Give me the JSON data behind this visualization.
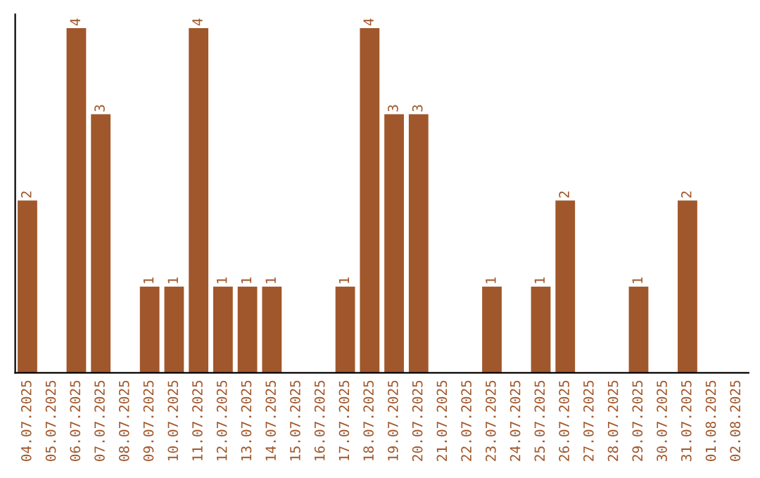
{
  "chart_data": {
    "type": "bar",
    "categories": [
      "04.07.2025",
      "05.07.2025",
      "06.07.2025",
      "07.07.2025",
      "08.07.2025",
      "09.07.2025",
      "10.07.2025",
      "11.07.2025",
      "12.07.2025",
      "13.07.2025",
      "14.07.2025",
      "15.07.2025",
      "16.07.2025",
      "17.07.2025",
      "18.07.2025",
      "19.07.2025",
      "20.07.2025",
      "21.07.2025",
      "22.07.2025",
      "23.07.2025",
      "24.07.2025",
      "25.07.2025",
      "26.07.2025",
      "27.07.2025",
      "28.07.2025",
      "29.07.2025",
      "30.07.2025",
      "31.07.2025",
      "01.08.2025",
      "02.08.2025"
    ],
    "values": [
      2,
      0,
      4,
      3,
      0,
      1,
      1,
      4,
      1,
      1,
      1,
      0,
      0,
      1,
      4,
      3,
      3,
      0,
      0,
      1,
      0,
      1,
      2,
      0,
      0,
      1,
      0,
      2,
      0,
      0
    ],
    "value_labels": [
      "2",
      null,
      "4",
      "3",
      null,
      "1",
      "1",
      "4",
      "1",
      "1",
      "1",
      null,
      null,
      "1",
      "4",
      "3",
      "3",
      null,
      null,
      "1",
      null,
      "1",
      "2",
      null,
      null,
      "1",
      null,
      "2",
      null,
      null
    ],
    "color": "#a0572b",
    "ylim": [
      0,
      4.16
    ],
    "tick_labels": "x",
    "grid": false,
    "legend": false
  }
}
